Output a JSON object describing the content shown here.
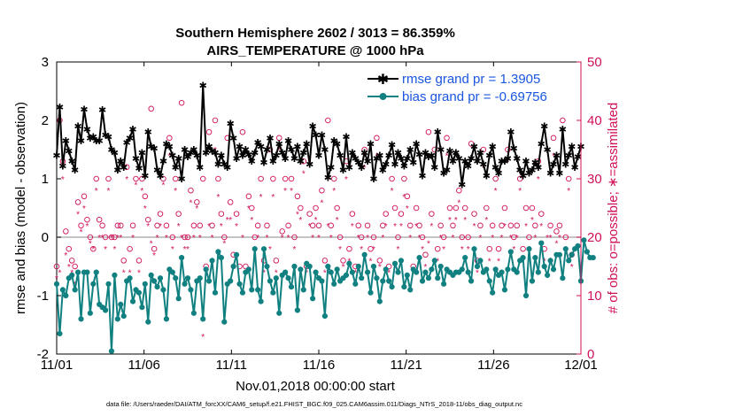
{
  "chart_data": {
    "type": "line",
    "title": "Southern Hemisphere 2602 / 3013 = 86.359%",
    "subtitle": "AIRS_TEMPERATURE @ 1000 hPa",
    "xlabel": "Nov.01,2018 00:00:00 start",
    "ylabel": "rmse and bias (model - observation)",
    "y2label": "# of obs: o=possible; ∗=assimilated",
    "xlim": [
      0,
      30
    ],
    "ylim": [
      -2,
      3
    ],
    "y2lim": [
      0,
      50
    ],
    "x_tick_values": [
      0,
      5,
      10,
      15,
      20,
      25,
      30
    ],
    "x_tick_labels": [
      "11/01",
      "11/06",
      "11/11",
      "11/16",
      "11/21",
      "11/26",
      "12/01"
    ],
    "y_ticks": [
      "-2",
      "-1",
      "0",
      "1",
      "2",
      "3"
    ],
    "y2_ticks": [
      "0",
      "10",
      "20",
      "30",
      "40",
      "50"
    ],
    "legend_position": "top-right",
    "footer": "data file: /Users/raeder/DAI/ATM_forcXX/CAM6_setup/f.e21.FHIST_BGC.f09_025.CAM6assim.011/Diags_NTrS_2018-11/obs_diag_output.nc",
    "colors": {
      "rmse": "#000000",
      "bias": "#118080",
      "obs": "#d0105a",
      "legend_text": "#1a56e0",
      "zero_line": "#b0b0b0"
    },
    "series": [
      {
        "name": "rmse grand pr = 1.3905",
        "axis": "left",
        "values": [
          1.4,
          2.23,
          1.22,
          1.65,
          1.48,
          1.3,
          1.15,
          1.9,
          1.65,
          2.19,
          1.85,
          1.7,
          1.72,
          1.65,
          1.65,
          2.18,
          1.75,
          1.72,
          1.5,
          1.45,
          1.15,
          1.3,
          1.2,
          1.62,
          1.7,
          1.85,
          1.35,
          1.18,
          1.45,
          1.05,
          1.8,
          1.55,
          1.52,
          1.15,
          1.05,
          1.3,
          1.6,
          1.55,
          1.4,
          1.2,
          1.35,
          1.0,
          1.5,
          1.38,
          1.45,
          1.5,
          1.4,
          1.2,
          2.6,
          1.45,
          1.55,
          1.48,
          1.45,
          1.25,
          1.4,
          1.25,
          1.2,
          1.95,
          1.7,
          1.35,
          1.55,
          1.4,
          1.5,
          1.42,
          1.3,
          1.45,
          1.62,
          1.55,
          1.28,
          1.5,
          1.7,
          1.3,
          1.4,
          1.6,
          1.45,
          1.35,
          1.65,
          1.5,
          1.35,
          1.55,
          1.3,
          1.45,
          1.6,
          1.25,
          1.9,
          1.75,
          1.4,
          1.75,
          1.5,
          1.02,
          1.2,
          1.65,
          1.6,
          1.4,
          1.15,
          1.72,
          1.2,
          1.45,
          1.35,
          1.28,
          1.2,
          1.45,
          1.3,
          1.6,
          1.0,
          1.35,
          1.4,
          1.15,
          1.25,
          1.4,
          1.58,
          1.25,
          1.45,
          1.35,
          1.22,
          1.35,
          1.5,
          1.28,
          1.6,
          1.42,
          1.05,
          1.45,
          1.38,
          1.4,
          1.2,
          1.8,
          1.5,
          1.1,
          1.15,
          1.48,
          1.3,
          1.45,
          1.35,
          0.9,
          1.3,
          1.22,
          1.35,
          1.55,
          1.3,
          1.45,
          1.25,
          1.05,
          1.4,
          1.55,
          1.2,
          1.1,
          1.3,
          1.3,
          1.35,
          1.8,
          1.52,
          1.35,
          1.15,
          1.05,
          1.3,
          1.1,
          1.15,
          1.28,
          1.2,
          1.6,
          1.9,
          1.5,
          1.1,
          1.25,
          1.4,
          1.1,
          1.85,
          1.25,
          1.4,
          1.55,
          1.2,
          1.38,
          1.55
        ]
      },
      {
        "name": "bias grand pr = -0.69756",
        "axis": "left",
        "values": [
          -0.8,
          -1.65,
          -0.9,
          -1.0,
          -0.7,
          -0.65,
          -0.9,
          -0.6,
          -1.4,
          -0.6,
          -0.6,
          -1.3,
          -0.8,
          -0.6,
          -1.15,
          -1.2,
          -1.25,
          -0.8,
          -1.95,
          -0.65,
          -1.4,
          -1.15,
          -1.35,
          -0.75,
          -0.7,
          -1.1,
          -0.9,
          -0.95,
          -1.2,
          -0.8,
          -1.45,
          -0.65,
          -0.75,
          -0.85,
          -0.7,
          -0.9,
          -1.4,
          -0.55,
          -0.6,
          -0.7,
          -1.05,
          -0.35,
          -0.8,
          -0.7,
          -0.9,
          -1.3,
          -0.75,
          -0.7,
          -1.4,
          -0.55,
          -0.75,
          -0.4,
          -0.95,
          -0.25,
          -0.35,
          -1.45,
          -0.8,
          -0.75,
          -0.5,
          -0.3,
          -0.8,
          -0.95,
          -0.6,
          -0.55,
          -0.9,
          -0.2,
          -0.9,
          -1.1,
          -0.2,
          -0.5,
          -0.75,
          -0.95,
          -0.7,
          -1.3,
          -0.65,
          -0.6,
          -0.7,
          -0.85,
          -0.5,
          -1.25,
          -0.55,
          -0.9,
          -0.45,
          -0.5,
          -1.05,
          -0.6,
          -0.7,
          -0.75,
          -1.35,
          -0.5,
          -0.6,
          -0.8,
          -0.55,
          -0.75,
          -0.7,
          -0.65,
          -0.45,
          -0.6,
          -0.8,
          -0.5,
          -0.7,
          -0.3,
          -0.6,
          -0.95,
          -0.5,
          -0.7,
          -1.1,
          -0.75,
          -0.55,
          -0.75,
          -0.85,
          -0.45,
          -0.6,
          -0.4,
          -0.85,
          -0.65,
          -0.9,
          -0.55,
          -0.6,
          -0.35,
          -0.75,
          -0.6,
          -0.7,
          -0.55,
          -0.4,
          -0.7,
          -0.5,
          -0.8,
          -0.55,
          -0.6,
          -0.65,
          -0.6,
          -0.6,
          -0.55,
          -0.35,
          -0.6,
          -0.75,
          -0.2,
          -0.5,
          -0.4,
          -0.6,
          -0.55,
          -0.75,
          -0.95,
          -0.55,
          -0.65,
          -0.6,
          -0.9,
          -0.55,
          -0.25,
          -0.55,
          -0.6,
          -0.4,
          -0.35,
          -1.0,
          -0.2,
          -0.75,
          -0.35,
          -0.6,
          -0.1,
          -0.5,
          -0.65,
          -0.4,
          -0.55,
          -0.3,
          -0.3,
          -0.7,
          -0.2,
          -0.4,
          -0.3,
          -0.2,
          -0.15,
          -0.75,
          -0.05,
          -0.25,
          -0.35,
          -0.35
        ]
      },
      {
        "name": "# of obs possible",
        "axis": "right",
        "marker": "o",
        "values": [
          15,
          40,
          33,
          21,
          18,
          16,
          15,
          26,
          22,
          27,
          23,
          20,
          18,
          30,
          23,
          22,
          20,
          30,
          20,
          20,
          22,
          22,
          16,
          32,
          18,
          22,
          30,
          16,
          30,
          27,
          23,
          42,
          18,
          22,
          24,
          30,
          22,
          37,
          20,
          30,
          24,
          43,
          20,
          20,
          28,
          22,
          26,
          22,
          30,
          15,
          38,
          22,
          40,
          30,
          24,
          20,
          37,
          26,
          17,
          24,
          15,
          38,
          15,
          27,
          25,
          20,
          22,
          30,
          16,
          22,
          35,
          30,
          16,
          37,
          21,
          30,
          22,
          30,
          20,
          27,
          25,
          33,
          15,
          24,
          22,
          25,
          22,
          28,
          16,
          40,
          22,
          30,
          25,
          20,
          16,
          33,
          18,
          24,
          15,
          22,
          20,
          35,
          22,
          18,
          20,
          37,
          16,
          22,
          24,
          15,
          30,
          25,
          20,
          24,
          30,
          27,
          22,
          15,
          25,
          22,
          20,
          17,
          38,
          24,
          35,
          18,
          22,
          20,
          37,
          25,
          22,
          25,
          28,
          20,
          25,
          20,
          36,
          24,
          16,
          22,
          35,
          25,
          18,
          22,
          30,
          18,
          22,
          25,
          35,
          22,
          20,
          22,
          30,
          18,
          25,
          20,
          25,
          22,
          33,
          24,
          18,
          48,
          22,
          37,
          21,
          22,
          40,
          20,
          30,
          17
        ]
      },
      {
        "name": "# of obs assimilated",
        "axis": "right",
        "marker": "*",
        "values": [
          13,
          14,
          30,
          17,
          15,
          14,
          12,
          24,
          21,
          25,
          22,
          19,
          18,
          28,
          20,
          20,
          18,
          28,
          20,
          18,
          20,
          20,
          14,
          30,
          14,
          20,
          29,
          14,
          28,
          25,
          22,
          19,
          17,
          20,
          22,
          29,
          20,
          34,
          18,
          28,
          22,
          20,
          18,
          18,
          26,
          20,
          25,
          20,
          3,
          14,
          22,
          20,
          35,
          27,
          22,
          19,
          23,
          23,
          15,
          22,
          12,
          20,
          14,
          25,
          23,
          18,
          20,
          27,
          14,
          20,
          18,
          27,
          14,
          35,
          20,
          28,
          20,
          28,
          18,
          24,
          23,
          31,
          14,
          22,
          20,
          23,
          20,
          26,
          14,
          22,
          20,
          28,
          23,
          18,
          15,
          30,
          16,
          22,
          14,
          20,
          18,
          32,
          20,
          16,
          18,
          34,
          15,
          20,
          22,
          14,
          28,
          22,
          18,
          22,
          27,
          25,
          20,
          14,
          22,
          20,
          18,
          15,
          19,
          22,
          32,
          16,
          20,
          18,
          34,
          23,
          20,
          23,
          26,
          18,
          23,
          18,
          33,
          22,
          14,
          20,
          32,
          23,
          16,
          20,
          28,
          16,
          20,
          22,
          33,
          20,
          18,
          20,
          28,
          16,
          22,
          18,
          23,
          20,
          30,
          22,
          16,
          20,
          20,
          34,
          19,
          20,
          38,
          18,
          28,
          15
        ]
      }
    ]
  }
}
